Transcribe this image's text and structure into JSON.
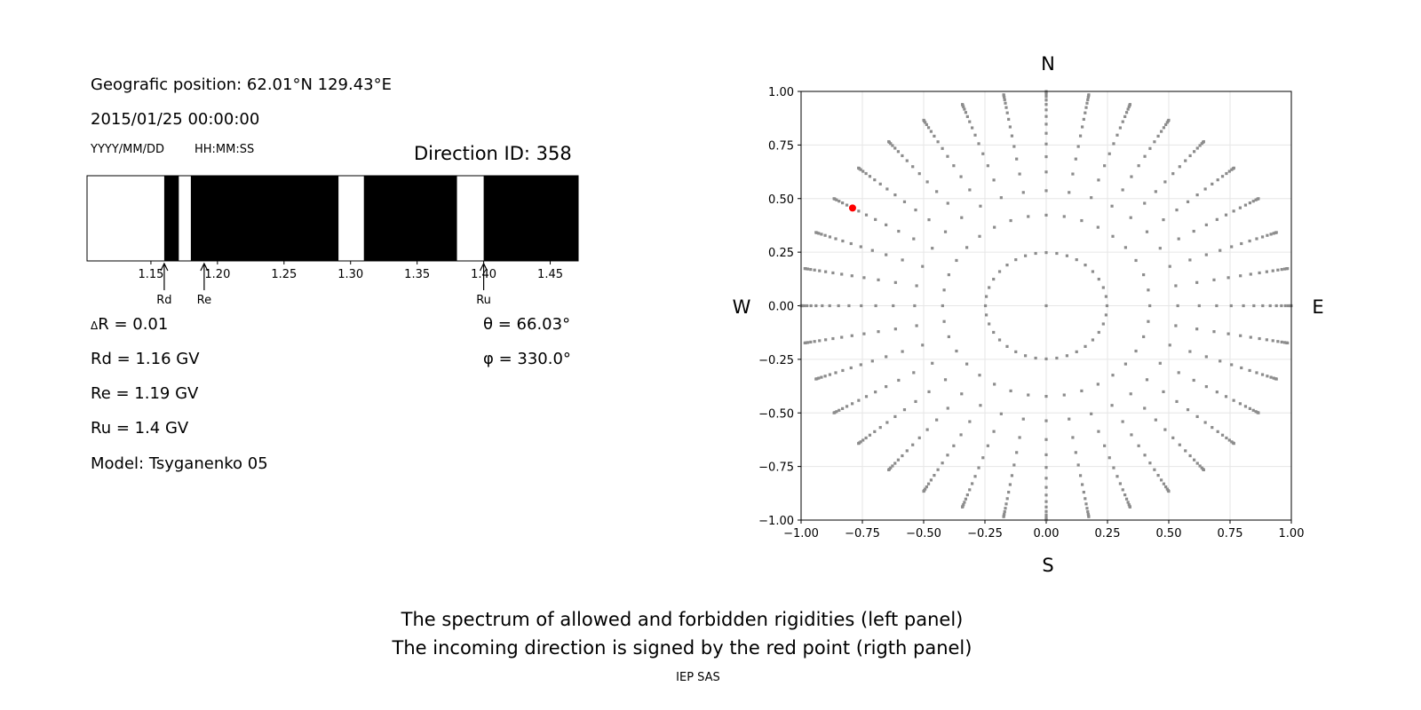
{
  "info": {
    "position": "Geografic position: 62.01°N 129.43°E",
    "datetime": "2015/01/25 00:00:00",
    "date_format": "YYYY/MM/DD",
    "time_format": "HH:MM:SS",
    "direction_id": "Direction ID: 358",
    "delta_r_symbol": "Δ",
    "delta_r": "R = 0.01",
    "rd": "Rd = 1.16 GV",
    "re": "Re = 1.19 GV",
    "ru": "Ru = 1.4 GV",
    "model": "Model: Tsyganenko 05",
    "theta": "θ = 66.03°",
    "phi": "φ = 330.0°"
  },
  "footer": {
    "line1": "The spectrum of allowed and forbidden rigidities (left panel)",
    "line2": "The incoming direction is signed by the red point (rigth panel)",
    "credit": "IEP SAS"
  },
  "chart_data": [
    {
      "type": "bar",
      "xlim": [
        1.102,
        1.471
      ],
      "xticks": [
        "1.15",
        "1.20",
        "1.25",
        "1.30",
        "1.35",
        "1.40",
        "1.45"
      ],
      "xtick_values": [
        1.15,
        1.2,
        1.25,
        1.3,
        1.35,
        1.4,
        1.45
      ],
      "bands": [
        {
          "from": 1.102,
          "to": 1.16,
          "state": "allowed"
        },
        {
          "from": 1.16,
          "to": 1.171,
          "state": "forbidden"
        },
        {
          "from": 1.171,
          "to": 1.18,
          "state": "allowed"
        },
        {
          "from": 1.18,
          "to": 1.291,
          "state": "forbidden"
        },
        {
          "from": 1.291,
          "to": 1.31,
          "state": "allowed"
        },
        {
          "from": 1.31,
          "to": 1.38,
          "state": "forbidden"
        },
        {
          "from": 1.38,
          "to": 1.4,
          "state": "allowed"
        },
        {
          "from": 1.4,
          "to": 1.471,
          "state": "forbidden"
        }
      ],
      "markers": [
        {
          "label": "Rd",
          "value": 1.16
        },
        {
          "label": "Re",
          "value": 1.19
        },
        {
          "label": "Ru",
          "value": 1.4
        }
      ],
      "colors": {
        "allowed": "#ffffff",
        "forbidden": "#000000"
      }
    },
    {
      "type": "scatter",
      "xlim": [
        -1,
        1
      ],
      "ylim": [
        -1,
        1
      ],
      "xticks": [
        "−1.00",
        "−0.75",
        "−0.50",
        "−0.25",
        "0.00",
        "0.25",
        "0.50",
        "0.75",
        "1.00"
      ],
      "yticks": [
        "−1.00",
        "−0.75",
        "−0.50",
        "−0.25",
        "0.00",
        "0.25",
        "0.50",
        "0.75",
        "1.00"
      ],
      "tick_values": [
        -1,
        -0.75,
        -0.5,
        -0.25,
        0,
        0.25,
        0.5,
        0.75,
        1
      ],
      "grid": true,
      "directions": {
        "top": "N",
        "bottom": "S",
        "left": "W",
        "right": "E"
      },
      "grid_cos_zenith": [
        0.96875,
        0.90625,
        0.84375,
        0.78125,
        0.71875,
        0.65625,
        0.59375,
        0.53125,
        0.46875,
        0.40625,
        0.34375,
        0.28125,
        0.21875,
        0.15625,
        0.09375,
        0.03125
      ],
      "grid_azimuths_deg": [
        0,
        10,
        20,
        30,
        40,
        50,
        60,
        70,
        80,
        90,
        100,
        110,
        120,
        130,
        140,
        150,
        160,
        170,
        180,
        190,
        200,
        210,
        220,
        230,
        240,
        250,
        260,
        270,
        280,
        290,
        300,
        310,
        320,
        330,
        340,
        350
      ],
      "center_point": [
        0,
        0
      ],
      "highlight": {
        "theta_deg": 66.03,
        "phi_deg": 330.0,
        "x": -0.79,
        "y": 0.456
      },
      "colors": {
        "points": "#8c8c8c",
        "highlight": "#ff0000"
      }
    }
  ]
}
